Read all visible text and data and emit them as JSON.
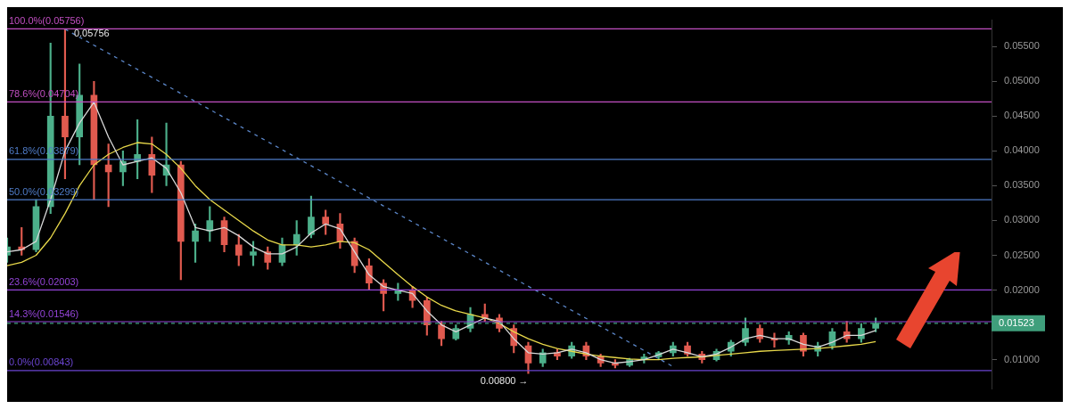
{
  "chart_data": {
    "type": "candlestick",
    "categories": [
      null,
      null,
      null,
      null,
      null,
      null,
      null,
      null,
      null,
      null,
      null,
      null,
      null,
      null,
      null,
      null,
      null,
      null,
      null,
      null,
      null,
      null,
      null,
      null,
      null,
      null,
      null,
      null,
      null,
      null,
      null,
      null,
      null,
      null,
      null,
      null,
      null,
      null,
      null,
      null,
      null,
      null,
      null,
      null,
      null,
      null,
      null,
      null,
      null,
      null,
      null,
      null,
      null,
      null,
      null,
      null,
      null,
      null,
      null,
      null,
      null,
      null,
      null,
      null,
      null,
      null,
      null,
      null,
      null
    ],
    "ohlc": [
      [
        0.025,
        0.0275,
        0.024,
        0.0262
      ],
      [
        0.0262,
        0.029,
        0.025,
        0.0258
      ],
      [
        0.0258,
        0.033,
        0.0255,
        0.032
      ],
      [
        0.032,
        0.0555,
        0.031,
        0.045
      ],
      [
        0.045,
        0.05756,
        0.036,
        0.042
      ],
      [
        0.042,
        0.0525,
        0.038,
        0.048
      ],
      [
        0.048,
        0.05,
        0.033,
        0.038
      ],
      [
        0.038,
        0.041,
        0.032,
        0.037
      ],
      [
        0.037,
        0.04,
        0.035,
        0.0385
      ],
      [
        0.0385,
        0.0445,
        0.036,
        0.0395
      ],
      [
        0.0395,
        0.042,
        0.034,
        0.0365
      ],
      [
        0.0365,
        0.044,
        0.035,
        0.038
      ],
      [
        0.038,
        0.0385,
        0.0215,
        0.027
      ],
      [
        0.027,
        0.0295,
        0.024,
        0.0285
      ],
      [
        0.0285,
        0.032,
        0.027,
        0.03
      ],
      [
        0.03,
        0.0305,
        0.0255,
        0.0265
      ],
      [
        0.0265,
        0.028,
        0.0235,
        0.025
      ],
      [
        0.025,
        0.027,
        0.0235,
        0.0255
      ],
      [
        0.0255,
        0.0262,
        0.023,
        0.024
      ],
      [
        0.024,
        0.0275,
        0.0235,
        0.0265
      ],
      [
        0.0265,
        0.03,
        0.025,
        0.028
      ],
      [
        0.028,
        0.0335,
        0.0275,
        0.0305
      ],
      [
        0.0305,
        0.0315,
        0.028,
        0.0295
      ],
      [
        0.0295,
        0.031,
        0.026,
        0.027
      ],
      [
        0.027,
        0.0275,
        0.0225,
        0.0235
      ],
      [
        0.0235,
        0.0245,
        0.02,
        0.021
      ],
      [
        0.021,
        0.0215,
        0.017,
        0.0195
      ],
      [
        0.0195,
        0.021,
        0.0185,
        0.02
      ],
      [
        0.02,
        0.0205,
        0.0175,
        0.0185
      ],
      [
        0.0185,
        0.019,
        0.0135,
        0.015
      ],
      [
        0.015,
        0.0155,
        0.012,
        0.013
      ],
      [
        0.013,
        0.015,
        0.0128,
        0.0145
      ],
      [
        0.0145,
        0.0175,
        0.014,
        0.0165
      ],
      [
        0.0165,
        0.018,
        0.0155,
        0.016
      ],
      [
        0.016,
        0.0165,
        0.014,
        0.0145
      ],
      [
        0.0145,
        0.015,
        0.011,
        0.012
      ],
      [
        0.012,
        0.0125,
        0.008,
        0.0095
      ],
      [
        0.0095,
        0.0115,
        0.009,
        0.011
      ],
      [
        0.011,
        0.0115,
        0.01,
        0.0105
      ],
      [
        0.0105,
        0.0125,
        0.0102,
        0.012
      ],
      [
        0.012,
        0.0125,
        0.01,
        0.0105
      ],
      [
        0.0105,
        0.0108,
        0.009,
        0.0095
      ],
      [
        0.0095,
        0.01,
        0.0088,
        0.0092
      ],
      [
        0.0092,
        0.0102,
        0.009,
        0.01
      ],
      [
        0.01,
        0.0108,
        0.0095,
        0.0104
      ],
      [
        0.0104,
        0.0112,
        0.01,
        0.011
      ],
      [
        0.011,
        0.0125,
        0.0105,
        0.012
      ],
      [
        0.012,
        0.0125,
        0.0105,
        0.0108
      ],
      [
        0.0108,
        0.0112,
        0.0095,
        0.01
      ],
      [
        0.01,
        0.0115,
        0.0098,
        0.0112
      ],
      [
        0.0112,
        0.0128,
        0.0105,
        0.0125
      ],
      [
        0.0125,
        0.016,
        0.012,
        0.0145
      ],
      [
        0.0145,
        0.015,
        0.0125,
        0.013
      ],
      [
        0.013,
        0.0138,
        0.0118,
        0.0128
      ],
      [
        0.0128,
        0.014,
        0.0122,
        0.0135
      ],
      [
        0.0135,
        0.0138,
        0.0105,
        0.0112
      ],
      [
        0.0112,
        0.0125,
        0.0105,
        0.012
      ],
      [
        0.012,
        0.0145,
        0.0115,
        0.014
      ],
      [
        0.014,
        0.0155,
        0.0125,
        0.013
      ],
      [
        0.013,
        0.0152,
        0.0125,
        0.0145
      ],
      [
        0.0145,
        0.016,
        0.014,
        0.01523
      ],
      null,
      null,
      null,
      null,
      null,
      null,
      null,
      null
    ],
    "series": [
      {
        "type": "line",
        "color": "#d8d8d8",
        "values": [
          0.0255,
          0.0258,
          0.027,
          0.033,
          0.04,
          0.044,
          0.047,
          0.042,
          0.038,
          0.0385,
          0.039,
          0.0375,
          0.034,
          0.029,
          0.0285,
          0.029,
          0.0278,
          0.0262,
          0.0252,
          0.0252,
          0.0262,
          0.0282,
          0.0295,
          0.0288,
          0.0255,
          0.0222,
          0.0205,
          0.02,
          0.0195,
          0.017,
          0.015,
          0.014,
          0.015,
          0.016,
          0.0155,
          0.013,
          0.011,
          0.0108,
          0.011,
          0.0115,
          0.011,
          0.01,
          0.0095,
          0.0097,
          0.01,
          0.0107,
          0.0115,
          0.011,
          0.0104,
          0.0108,
          0.0118,
          0.013,
          0.0135,
          0.013,
          0.013,
          0.0122,
          0.0118,
          0.0125,
          0.0135,
          0.0135,
          0.0142,
          null,
          null,
          null,
          null,
          null,
          null,
          null,
          null
        ]
      },
      {
        "type": "line",
        "color": "#e8d84a",
        "values": [
          0.0235,
          0.024,
          0.025,
          0.0275,
          0.031,
          0.035,
          0.038,
          0.0395,
          0.0405,
          0.0412,
          0.041,
          0.0395,
          0.0375,
          0.035,
          0.033,
          0.0315,
          0.03,
          0.0285,
          0.0272,
          0.0265,
          0.0265,
          0.0262,
          0.0265,
          0.027,
          0.0268,
          0.0258,
          0.024,
          0.0222,
          0.0205,
          0.019,
          0.0178,
          0.017,
          0.0165,
          0.016,
          0.0152,
          0.014,
          0.013,
          0.0122,
          0.0116,
          0.0112,
          0.0108,
          0.0105,
          0.0103,
          0.0101,
          0.01,
          0.01,
          0.0102,
          0.0103,
          0.0104,
          0.0106,
          0.0108,
          0.011,
          0.0112,
          0.0113,
          0.0114,
          0.0115,
          0.0116,
          0.0118,
          0.012,
          0.0122,
          0.0126,
          null,
          null,
          null,
          null,
          null,
          null,
          null,
          null
        ]
      },
      {
        "type": "line",
        "color": "#5b86c8",
        "line_style": "dashed",
        "values": [
          null,
          null,
          null,
          null,
          0.0575,
          null,
          null,
          null,
          null,
          null,
          null,
          null,
          null,
          null,
          null,
          null,
          null,
          null,
          null,
          null,
          null,
          null,
          null,
          null,
          null,
          null,
          null,
          null,
          null,
          null,
          null,
          null,
          null,
          null,
          null,
          null,
          null,
          null,
          null,
          null,
          null,
          null,
          null,
          null,
          null,
          null,
          0.009,
          null,
          null,
          null,
          null,
          null,
          null,
          null,
          null,
          null,
          null,
          null,
          null,
          null,
          null,
          null,
          null,
          null,
          null,
          null,
          null,
          null,
          null
        ]
      }
    ],
    "ylim": [
      0.0058,
      0.0588
    ],
    "yticks": [
      {
        "value": 0.01,
        "label": "0.01000"
      },
      {
        "value": 0.015,
        "label": null
      },
      {
        "value": 0.02,
        "label": "0.02000"
      },
      {
        "value": 0.025,
        "label": "0.02500"
      },
      {
        "value": 0.03,
        "label": "0.03000"
      },
      {
        "value": 0.035,
        "label": "0.03500"
      },
      {
        "value": 0.04,
        "label": "0.04000"
      },
      {
        "value": 0.045,
        "label": "0.04500"
      },
      {
        "value": 0.05,
        "label": "0.05000"
      },
      {
        "value": 0.055,
        "label": "0.05500"
      }
    ],
    "ref_lines": [
      {
        "axis": "y",
        "value": 0.05756,
        "label": "100.0%(0.05756)",
        "color": "#c24fc2"
      },
      {
        "axis": "y",
        "value": 0.04704,
        "label": "78.6%(0.04704)",
        "color": "#c24fc2"
      },
      {
        "axis": "y",
        "value": 0.03879,
        "label": "61.8%(0.03879)",
        "color": "#4f7cc8"
      },
      {
        "axis": "y",
        "value": 0.03299,
        "label": "50.0%(0.03299)",
        "color": "#4f7cc8"
      },
      {
        "axis": "y",
        "value": 0.02003,
        "label": "23.6%(0.02003)",
        "color": "#9444d8"
      },
      {
        "axis": "y",
        "value": 0.01546,
        "label": "14.3%(0.01546)",
        "color": "#9444d8"
      },
      {
        "axis": "y",
        "value": 0.00843,
        "label": "0.0%(0.00843)",
        "color": "#6a44d0"
      },
      {
        "axis": "y",
        "value": 0.01523,
        "label": "0.01523",
        "color": "#3f9f7c",
        "line_style": "dashed"
      }
    ],
    "annotations": [
      {
        "text": "0.05756",
        "y": 0.05756
      },
      {
        "text": "0.00800 →",
        "y": 0.008
      }
    ],
    "grid": false,
    "legend": false,
    "tick_labels": "y"
  }
}
